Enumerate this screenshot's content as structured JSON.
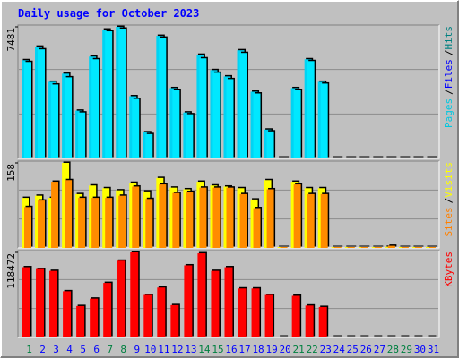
{
  "title": "Daily usage for October 2023",
  "chart_data": [
    {
      "type": "bar",
      "ylim": [
        0,
        7481
      ],
      "yticks": [
        7481
      ],
      "legend": [
        {
          "name": "Pages",
          "color": "#00c8e0"
        },
        {
          "name": "Files",
          "color": "#0000ff"
        },
        {
          "name": "Hits",
          "color": "#008080"
        }
      ],
      "separator": "/",
      "series": [
        {
          "color": "#00d4f4",
          "values": [
            5585,
            6354,
            4355,
            4817,
            2716,
            5790,
            7327,
            7481,
            3536,
            1486,
            6969,
            3997,
            2613,
            5893,
            5022,
            4663,
            6149,
            3792,
            1640,
            0,
            3997,
            5636,
            4355,
            0,
            0,
            0,
            0,
            0,
            0,
            0,
            0
          ]
        },
        {
          "color": "#00e8ff",
          "values": [
            5483,
            6200,
            4202,
            4612,
            2613,
            5636,
            7225,
            7379,
            3382,
            1383,
            6866,
            3894,
            2511,
            5688,
            4868,
            4509,
            5995,
            3689,
            1537,
            0,
            3894,
            5534,
            4253,
            0,
            0,
            0,
            0,
            0,
            0,
            0,
            0
          ]
        }
      ]
    },
    {
      "type": "bar",
      "ylim": [
        0,
        158
      ],
      "yticks": [
        158
      ],
      "legend": [
        {
          "name": "Sites",
          "color": "#ff8000"
        },
        {
          "name": "Visits",
          "color": "#ffff00"
        }
      ],
      "separator": "/",
      "series": [
        {
          "color": "#ffff00",
          "values": [
            93,
            97,
            93,
            158,
            100,
            116,
            111,
            107,
            121,
            105,
            130,
            112,
            109,
            123,
            116,
            114,
            111,
            90,
            126,
            1,
            123,
            111,
            111,
            0,
            0,
            0,
            0,
            2,
            0,
            0,
            0
          ]
        },
        {
          "color": "#ff8c00",
          "values": [
            76,
            88,
            123,
            126,
            93,
            93,
            93,
            97,
            114,
            91,
            118,
            102,
            104,
            112,
            112,
            112,
            100,
            74,
            109,
            1,
            118,
            100,
            100,
            0,
            0,
            0,
            0,
            4,
            0,
            0,
            0
          ]
        }
      ]
    },
    {
      "type": "bar",
      "ylim": [
        0,
        118472
      ],
      "yticks": [
        118472
      ],
      "legend": [
        {
          "name": "KBytes",
          "color": "#ff0000"
        }
      ],
      "series": [
        {
          "color": "#ff0000",
          "values": [
            97865,
            95290,
            92714,
            64385,
            43782,
            54083,
            75974,
            106879,
            118472,
            59234,
            69536,
            45070,
            100441,
            117181,
            92714,
            97865,
            68248,
            68248,
            59234,
            0,
            58000,
            44500,
            42494,
            0,
            0,
            0,
            0,
            0,
            0,
            0,
            0
          ]
        }
      ],
      "categories": [
        "1",
        "2",
        "3",
        "4",
        "5",
        "6",
        "7",
        "8",
        "9",
        "10",
        "11",
        "12",
        "13",
        "14",
        "15",
        "16",
        "17",
        "18",
        "19",
        "20",
        "21",
        "22",
        "23",
        "24",
        "25",
        "26",
        "27",
        "28",
        "29",
        "30",
        "31"
      ],
      "category_colors": [
        "#008040",
        "#0000ff",
        "#0000ff",
        "#0000ff",
        "#0000ff",
        "#0000ff",
        "#008040",
        "#008040",
        "#0000ff",
        "#0000ff",
        "#0000ff",
        "#0000ff",
        "#0000ff",
        "#008040",
        "#008040",
        "#0000ff",
        "#0000ff",
        "#0000ff",
        "#0000ff",
        "#0000ff",
        "#008040",
        "#008040",
        "#0000ff",
        "#0000ff",
        "#0000ff",
        "#0000ff",
        "#0000ff",
        "#008040",
        "#008040",
        "#0000ff",
        "#0000ff"
      ]
    }
  ]
}
